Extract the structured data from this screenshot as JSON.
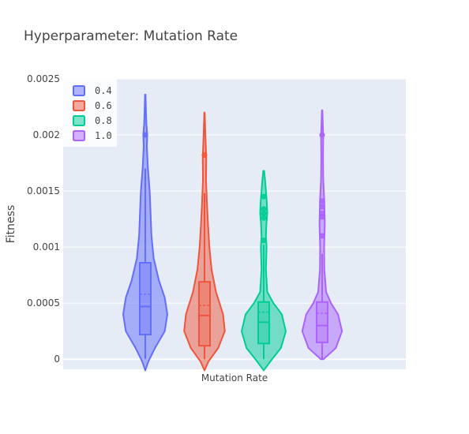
{
  "chart_data": {
    "type": "violin",
    "title": "Hyperparameter: Mutation Rate",
    "xlabel": "Mutation Rate",
    "ylabel": "Fitness",
    "ylim": [
      -9e-05,
      0.0025
    ],
    "yticks": [
      0,
      0.0005,
      0.001,
      0.0015,
      0.002,
      0.0025
    ],
    "ytick_labels": [
      "0",
      "0.0005",
      "0.001",
      "0.0015",
      "0.002",
      "0.0025"
    ],
    "category": "Mutation Rate",
    "grid": true,
    "legend_position": "top-left",
    "series": [
      {
        "name": "0.4",
        "color": "#636efa",
        "box": {
          "q1": 0.00022,
          "median": 0.00047,
          "q3": 0.00086,
          "mean": 0.00058,
          "whisker_low": 0.0,
          "whisker_high": 0.0017
        },
        "outliers": [
          0.002
        ],
        "profile": [
          [
            -0.0001,
            0.0
          ],
          [
            -2e-05,
            0.14
          ],
          [
            0.0001,
            0.44
          ],
          [
            0.00025,
            0.88
          ],
          [
            0.0004,
            1.0
          ],
          [
            0.00055,
            0.88
          ],
          [
            0.0007,
            0.62
          ],
          [
            0.0009,
            0.38
          ],
          [
            0.0011,
            0.28
          ],
          [
            0.0013,
            0.24
          ],
          [
            0.0015,
            0.2
          ],
          [
            0.0017,
            0.12
          ],
          [
            0.0019,
            0.07
          ],
          [
            0.002,
            0.09
          ],
          [
            0.0021,
            0.05
          ],
          [
            0.00236,
            0.01
          ]
        ]
      },
      {
        "name": "0.6",
        "color": "#ef553b",
        "box": {
          "q1": 0.00012,
          "median": 0.00039,
          "q3": 0.00069,
          "mean": 0.00048,
          "whisker_low": 0.0,
          "whisker_high": 0.00148
        },
        "outliers": [
          0.00182
        ],
        "profile": [
          [
            -0.0001,
            0.0
          ],
          [
            -2e-05,
            0.18
          ],
          [
            0.0001,
            0.62
          ],
          [
            0.00025,
            0.92
          ],
          [
            0.0004,
            0.84
          ],
          [
            0.0006,
            0.52
          ],
          [
            0.0008,
            0.32
          ],
          [
            0.001,
            0.22
          ],
          [
            0.0012,
            0.16
          ],
          [
            0.0014,
            0.11
          ],
          [
            0.0016,
            0.07
          ],
          [
            0.0018,
            0.08
          ],
          [
            0.002,
            0.04
          ],
          [
            0.0022,
            0.01
          ]
        ]
      },
      {
        "name": "0.8",
        "color": "#00cc96",
        "box": {
          "q1": 0.00014,
          "median": 0.00033,
          "q3": 0.00051,
          "mean": 0.00042,
          "whisker_low": 0.0,
          "whisker_high": 0.00102
        },
        "outliers": [
          0.00106,
          0.00126,
          0.0013,
          0.00134,
          0.00145
        ],
        "profile": [
          [
            -0.0001,
            0.0
          ],
          [
            -2e-05,
            0.3
          ],
          [
            0.0001,
            0.78
          ],
          [
            0.00025,
            1.0
          ],
          [
            0.0004,
            0.82
          ],
          [
            0.0005,
            0.44
          ],
          [
            0.0006,
            0.16
          ],
          [
            0.0008,
            0.1
          ],
          [
            0.001,
            0.13
          ],
          [
            0.0011,
            0.1
          ],
          [
            0.0012,
            0.12
          ],
          [
            0.0013,
            0.16
          ],
          [
            0.0014,
            0.14
          ],
          [
            0.0015,
            0.1
          ],
          [
            0.0016,
            0.06
          ],
          [
            0.00168,
            0.02
          ]
        ]
      },
      {
        "name": "1.0",
        "color": "#ab63fa",
        "box": {
          "q1": 0.00015,
          "median": 0.0003,
          "q3": 0.00051,
          "mean": 0.00041,
          "whisker_low": 0.0,
          "whisker_high": 0.00094
        },
        "outliers": [
          0.0011,
          0.00127,
          0.0013,
          0.00136,
          0.00141,
          0.002
        ],
        "profile": [
          [
            0.0,
            0.06
          ],
          [
            0.0001,
            0.62
          ],
          [
            0.00025,
            0.9
          ],
          [
            0.0004,
            0.72
          ],
          [
            0.0005,
            0.4
          ],
          [
            0.0006,
            0.18
          ],
          [
            0.0008,
            0.1
          ],
          [
            0.001,
            0.09
          ],
          [
            0.0012,
            0.12
          ],
          [
            0.0014,
            0.1
          ],
          [
            0.0016,
            0.05
          ],
          [
            0.0018,
            0.04
          ],
          [
            0.002,
            0.05
          ],
          [
            0.0021,
            0.03
          ],
          [
            0.00222,
            0.01
          ]
        ]
      }
    ]
  }
}
